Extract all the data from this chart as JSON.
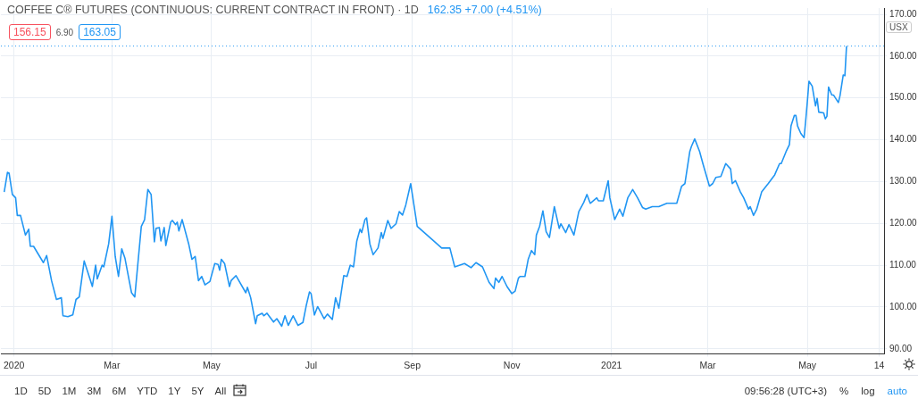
{
  "chart_data": {
    "type": "line",
    "title": "COFFEE C® FUTURES (CONTINUOUS: CURRENT CONTRACT IN FRONT) · 1D",
    "annotations": [
      "156.15",
      "6.90",
      "163.05",
      "162.35 +7.00 (+4.51%)",
      "USX",
      "1D",
      "5D",
      "1M",
      "3M",
      "6M",
      "YTD",
      "1Y",
      "5Y",
      "All",
      "09:56:28 (UTC+3)",
      "%",
      "log",
      "auto"
    ],
    "series": [
      {
        "color": "#2196f3",
        "x": [
          "2019-12-26",
          "2019-12-28",
          "2019-12-29",
          "2019-12-31",
          "2020-01-02",
          "2020-01-03",
          "2020-01-05",
          "2020-01-08",
          "2020-01-10",
          "2020-01-11",
          "2020-01-13",
          "2020-01-19",
          "2020-01-21",
          "2020-01-24",
          "2020-01-27",
          "2020-01-30",
          "2020-01-31",
          "2020-02-03",
          "2020-02-06",
          "2020-02-08",
          "2020-02-10",
          "2020-02-13",
          "2020-02-15",
          "2020-02-18",
          "2020-02-20",
          "2020-02-21",
          "2020-02-24",
          "2020-02-25",
          "2020-02-28",
          "2020-03-01",
          "2020-03-03",
          "2020-03-05",
          "2020-03-07",
          "2020-03-09",
          "2020-03-11",
          "2020-03-13",
          "2020-03-15",
          "2020-03-19",
          "2020-03-21",
          "2020-03-23",
          "2020-03-25",
          "2020-03-27",
          "2020-03-28",
          "2020-03-30",
          "2020-03-31",
          "2020-04-02",
          "2020-04-03",
          "2020-04-06",
          "2020-04-07",
          "2020-04-09",
          "2020-04-10",
          "2020-04-11",
          "2020-04-13",
          "2020-04-17",
          "2020-04-19",
          "2020-04-21",
          "2020-04-23",
          "2020-04-25",
          "2020-04-27",
          "2020-04-30",
          "2020-05-03",
          "2020-05-05",
          "2020-05-06",
          "2020-05-07",
          "2020-05-09",
          "2020-05-12",
          "2020-05-13",
          "2020-05-16",
          "2020-05-22",
          "2020-05-23",
          "2020-05-25",
          "2020-05-28",
          "2020-05-29",
          "2020-06-01",
          "2020-06-02",
          "2020-06-04",
          "2020-06-08",
          "2020-06-10",
          "2020-06-13",
          "2020-06-15",
          "2020-06-17",
          "2020-06-20",
          "2020-06-23",
          "2020-06-26",
          "2020-06-28",
          "2020-06-30",
          "2020-07-01",
          "2020-07-03",
          "2020-07-05",
          "2020-07-09",
          "2020-07-11",
          "2020-07-14",
          "2020-07-16",
          "2020-07-18",
          "2020-07-21",
          "2020-07-23",
          "2020-07-25",
          "2020-07-27",
          "2020-07-29",
          "2020-07-31",
          "2020-08-01",
          "2020-08-03",
          "2020-08-04",
          "2020-08-06",
          "2020-08-08",
          "2020-08-11",
          "2020-08-13",
          "2020-08-14",
          "2020-08-17",
          "2020-08-19",
          "2020-08-22",
          "2020-08-24",
          "2020-08-26",
          "2020-08-28",
          "2020-08-31",
          "2020-09-04",
          "2020-09-13",
          "2020-09-19",
          "2020-09-24",
          "2020-09-27",
          "2020-10-03",
          "2020-10-07",
          "2020-10-10",
          "2020-10-14",
          "2020-10-18",
          "2020-10-21",
          "2020-10-22",
          "2020-10-24",
          "2020-10-26",
          "2020-10-29",
          "2020-11-01",
          "2020-11-03",
          "2020-11-05",
          "2020-11-06",
          "2020-11-09",
          "2020-11-11",
          "2020-11-13",
          "2020-11-15",
          "2020-11-16",
          "2020-11-18",
          "2020-11-20",
          "2020-11-22",
          "2020-11-24",
          "2020-11-27",
          "2020-11-30",
          "2020-12-01",
          "2020-12-04",
          "2020-12-06",
          "2020-12-09",
          "2020-12-12",
          "2020-12-15",
          "2020-12-17",
          "2020-12-19",
          "2020-12-23",
          "2020-12-24",
          "2020-12-27",
          "2020-12-30",
          "2020-12-31",
          "2021-01-03",
          "2021-01-06",
          "2021-01-08",
          "2021-01-11",
          "2021-01-14",
          "2021-01-17",
          "2021-01-20",
          "2021-01-22",
          "2021-01-26",
          "2021-01-30",
          "2021-02-04",
          "2021-02-10",
          "2021-02-13",
          "2021-02-15",
          "2021-02-18",
          "2021-02-19",
          "2021-02-21",
          "2021-02-24",
          "2021-02-26",
          "2021-03-02",
          "2021-03-04",
          "2021-03-06",
          "2021-03-09",
          "2021-03-12",
          "2021-03-15",
          "2021-03-16",
          "2021-03-18",
          "2021-03-21",
          "2021-03-23",
          "2021-03-26",
          "2021-03-27",
          "2021-03-29",
          "2021-03-31",
          "2021-04-03",
          "2021-04-07",
          "2021-04-11",
          "2021-04-14",
          "2021-04-15",
          "2021-04-18",
          "2021-04-20",
          "2021-04-21",
          "2021-04-23",
          "2021-04-24",
          "2021-04-25",
          "2021-04-27",
          "2021-04-29",
          "2021-04-30",
          "2021-05-01",
          "2021-05-02",
          "2021-05-04",
          "2021-05-06",
          "2021-05-07",
          "2021-05-08",
          "2021-05-11",
          "2021-05-12",
          "2021-05-13",
          "2021-05-14",
          "2021-05-16",
          "2021-05-17",
          "2021-05-20",
          "2021-05-21",
          "2021-05-23",
          "2021-05-24",
          "2021-05-25"
        ],
        "values": [
          127.5,
          132.2,
          132.0,
          126.9,
          126.1,
          121.9,
          121.9,
          117.2,
          118.6,
          114.5,
          114.5,
          110.6,
          112.3,
          106.3,
          101.8,
          102.2,
          97.9,
          97.7,
          98.1,
          101.8,
          102.4,
          111.0,
          108.6,
          104.9,
          110.0,
          106.7,
          110.0,
          109.6,
          115.1,
          121.7,
          112.1,
          107.3,
          113.9,
          111.6,
          107.5,
          103.4,
          102.4,
          119.3,
          120.9,
          128.1,
          126.9,
          115.6,
          118.8,
          119.0,
          115.8,
          119.0,
          114.7,
          120.3,
          120.7,
          119.7,
          120.3,
          118.2,
          120.9,
          115.1,
          111.4,
          112.1,
          106.3,
          107.3,
          105.3,
          106.1,
          110.4,
          110.2,
          108.8,
          111.4,
          110.4,
          104.9,
          106.3,
          107.5,
          103.4,
          104.7,
          102.2,
          96.0,
          97.9,
          98.5,
          97.9,
          98.5,
          96.4,
          97.2,
          95.4,
          97.9,
          95.6,
          97.9,
          95.6,
          96.3,
          100.3,
          103.6,
          103.2,
          98.1,
          100.1,
          97.2,
          98.3,
          97.0,
          102.2,
          99.7,
          107.5,
          107.3,
          110.0,
          109.6,
          115.8,
          118.6,
          117.8,
          120.9,
          121.3,
          115.1,
          112.5,
          114.1,
          117.8,
          116.4,
          120.7,
          118.8,
          119.9,
          122.8,
          122.0,
          124.4,
          129.5,
          119.3,
          116.2,
          114.1,
          114.1,
          109.6,
          110.4,
          109.4,
          110.6,
          109.6,
          105.9,
          104.4,
          106.9,
          105.9,
          107.3,
          104.9,
          103.2,
          103.8,
          106.9,
          107.3,
          107.3,
          111.4,
          113.5,
          112.5,
          117.2,
          119.3,
          123.0,
          118.0,
          116.6,
          124.0,
          118.8,
          119.9,
          117.8,
          119.7,
          117.2,
          122.8,
          125.0,
          126.9,
          124.8,
          126.1,
          125.4,
          125.4,
          130.2,
          126.1,
          120.9,
          123.4,
          121.7,
          126.1,
          128.1,
          126.1,
          123.8,
          123.4,
          124.0,
          124.0,
          124.8,
          124.8,
          128.9,
          129.5,
          137.2,
          138.4,
          140.2,
          137.2,
          134.3,
          128.9,
          129.5,
          131.0,
          131.2,
          134.3,
          133.0,
          129.5,
          130.2,
          127.5,
          126.1,
          123.4,
          124.0,
          121.9,
          123.4,
          127.5,
          129.5,
          131.6,
          134.3,
          134.3,
          137.2,
          138.8,
          143.3,
          145.8,
          145.8,
          143.3,
          141.5,
          140.5,
          144.6,
          149.1,
          154.0,
          152.8,
          148.1,
          149.9,
          146.6,
          146.4,
          145.0,
          145.6,
          152.6,
          150.7,
          150.7,
          148.9,
          150.5,
          155.5,
          155.3,
          162.4
        ]
      }
    ],
    "xlim": [
      "2019-12-24",
      "2021-06-17"
    ],
    "xticks": [
      {
        "value": "2020-01-01",
        "label": "2020"
      },
      {
        "value": "2020-03-01",
        "label": "Mar"
      },
      {
        "value": "2020-05-01",
        "label": "May"
      },
      {
        "value": "2020-07-01",
        "label": "Jul"
      },
      {
        "value": "2020-09-01",
        "label": "Sep"
      },
      {
        "value": "2020-11-01",
        "label": "Nov"
      },
      {
        "value": "2021-01-01",
        "label": "2021"
      },
      {
        "value": "2021-03-01",
        "label": "Mar"
      },
      {
        "value": "2021-05-01",
        "label": "May"
      },
      {
        "value": "2021-06-14",
        "label": "14"
      }
    ],
    "ylim": [
      88.8,
      171.5
    ],
    "yticks": [
      {
        "value": 90,
        "label": "90.00"
      },
      {
        "value": 100,
        "label": "100.00"
      },
      {
        "value": 110,
        "label": "110.00"
      },
      {
        "value": 120,
        "label": "120.00"
      },
      {
        "value": 130,
        "label": "130.00"
      },
      {
        "value": 140,
        "label": "140.00"
      },
      {
        "value": 150,
        "label": "150.00"
      },
      {
        "value": 160,
        "label": "160.00"
      },
      {
        "value": 170,
        "label": "170.00"
      }
    ],
    "ref_lines": [
      {
        "axis": "y",
        "value": 162.4,
        "color": "#2196f3",
        "line_style": "dotted"
      }
    ],
    "grid": true,
    "marker": "none",
    "line_style": "solid"
  }
}
